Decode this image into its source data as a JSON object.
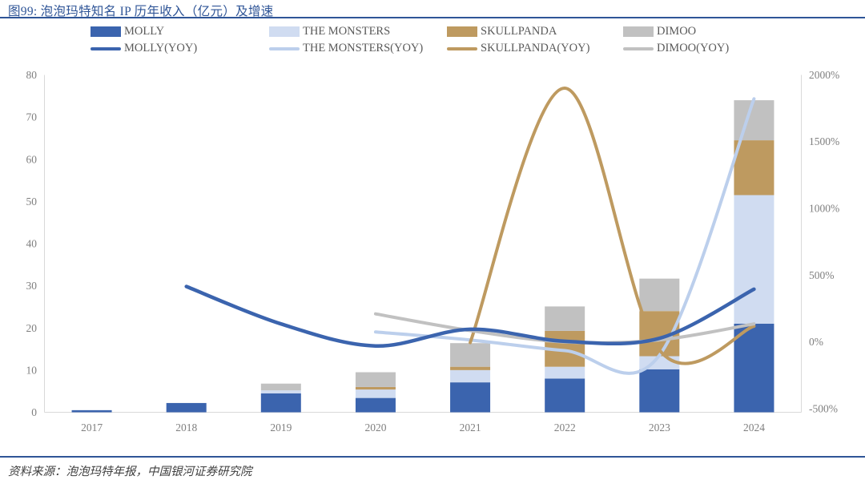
{
  "title": "图99: 泡泡玛特知名 IP 历年收入（亿元）及增速",
  "source_note": "资料来源：泡泡玛特年报，中国银河证券研究院",
  "colors": {
    "title_blue": "#2F5597",
    "rule_blue": "#2F5597",
    "molly": "#3B64AE",
    "the_monsters_bar": "#D0DCF1",
    "the_monsters_line": "#BCCFEC",
    "skullpanda": "#BE9A60",
    "dimoo": "#C1C1C1",
    "axis_text": "#7F7F7F",
    "legend_text": "#595959",
    "axis_line": "#D9D9D9",
    "source_text": "#3F3F3F"
  },
  "legend": {
    "bar_items": [
      {
        "id": "molly",
        "label": "MOLLY",
        "color": "molly"
      },
      {
        "id": "the-monsters",
        "label": "THE MONSTERS",
        "color": "the_monsters_bar"
      },
      {
        "id": "skullpanda",
        "label": "SKULLPANDA",
        "color": "skullpanda"
      },
      {
        "id": "dimoo",
        "label": "DIMOO",
        "color": "dimoo"
      }
    ],
    "line_items": [
      {
        "id": "molly-yoy",
        "label": "MOLLY(YOY)",
        "color": "molly"
      },
      {
        "id": "the-monsters-yoy",
        "label": "THE MONSTERS(YOY)",
        "color": "the_monsters_line"
      },
      {
        "id": "skullpanda-yoy",
        "label": "SKULLPANDA(YOY)",
        "color": "skullpanda"
      },
      {
        "id": "dimoo-yoy",
        "label": "DIMOO(YOY)",
        "color": "dimoo"
      }
    ]
  },
  "chart_data": {
    "type": "bar",
    "subtype": "stacked-bars-with-yoy-lines",
    "title": "泡泡玛特知名 IP 历年收入（亿元）及增速",
    "categories": [
      "2017",
      "2018",
      "2019",
      "2020",
      "2021",
      "2022",
      "2023",
      "2024"
    ],
    "bar_unit": "亿元",
    "series": [
      {
        "name": "MOLLY",
        "color": "molly",
        "values": [
          0.5,
          2.2,
          4.5,
          3.4,
          7.1,
          8.0,
          10.2,
          21.0
        ]
      },
      {
        "name": "THE MONSTERS",
        "color": "the_monsters_bar",
        "values": [
          0,
          0,
          0.7,
          2.0,
          2.9,
          2.8,
          3.1,
          30.5
        ]
      },
      {
        "name": "SKULLPANDA",
        "color": "skullpanda",
        "values": [
          0,
          0,
          0,
          0.6,
          0.8,
          8.5,
          10.7,
          13.0
        ]
      },
      {
        "name": "DIMOO",
        "color": "dimoo",
        "values": [
          0,
          0,
          1.6,
          3.5,
          5.6,
          5.8,
          7.7,
          9.5
        ]
      }
    ],
    "line_series": [
      {
        "name": "MOLLY(YOY)",
        "color": "molly",
        "values": [
          null,
          415,
          135,
          -30,
          95,
          5,
          27,
          395
        ]
      },
      {
        "name": "THE MONSTERS(YOY)",
        "color": "the_monsters_line",
        "values": [
          null,
          null,
          null,
          75,
          15,
          -65,
          -100,
          1820
        ]
      },
      {
        "name": "SKULLPANDA(YOY)",
        "color": "skullpanda",
        "values": [
          null,
          null,
          null,
          null,
          -5,
          1900,
          -60,
          118
        ]
      },
      {
        "name": "DIMOO(YOY)",
        "color": "dimoo",
        "values": [
          null,
          null,
          null,
          210,
          85,
          0,
          15,
          135
        ]
      }
    ],
    "line_unit": "%",
    "left_axis": {
      "min": 0,
      "max": 80,
      "ticks": [
        0,
        10,
        20,
        30,
        40,
        50,
        60,
        70,
        80
      ]
    },
    "right_axis": {
      "min": -500,
      "max": 2000,
      "ticks": [
        2000,
        1500,
        1000,
        500,
        0,
        -500
      ],
      "suffix": "%"
    },
    "grid": false,
    "legend_position": "top"
  }
}
